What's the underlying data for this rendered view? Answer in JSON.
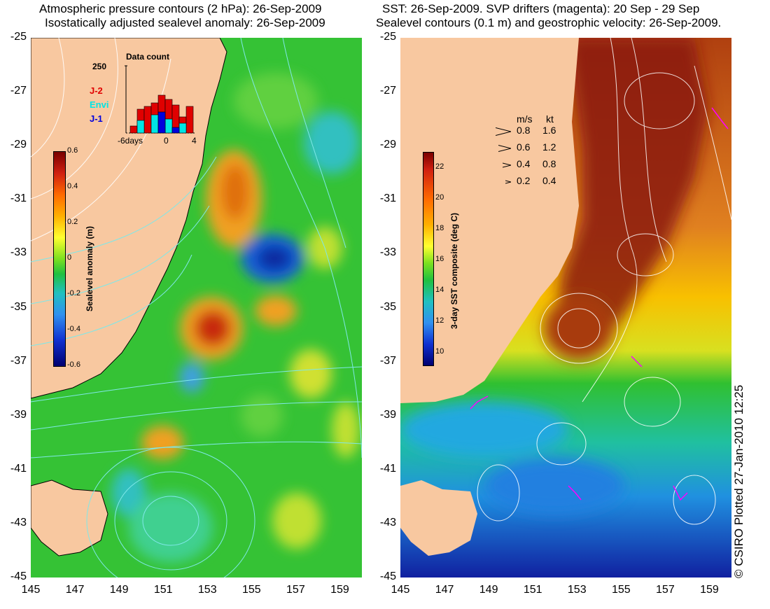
{
  "left_panel": {
    "title_line1": "Atmospheric pressure contours (2 hPa): 26-Sep-2009",
    "title_line2": "Isostatically adjusted sealevel anomaly: 26-Sep-2009",
    "colorbar": {
      "title": "Sealevel anomaly (m)",
      "ticks": [
        "0.6",
        "0.4",
        "0.2",
        "0",
        "-0.2",
        "-0.4",
        "-0.6"
      ]
    },
    "histogram": {
      "title": "Data count",
      "ymax_label": "250",
      "x_labels": [
        "-6days",
        "0",
        "4"
      ],
      "satellites": [
        {
          "name": "J-2",
          "color": "#e00000"
        },
        {
          "name": "Envi",
          "color": "#00e5e5"
        },
        {
          "name": "J-1",
          "color": "#0000dd"
        }
      ]
    }
  },
  "right_panel": {
    "title_line1": "SST: 26-Sep-2009. SVP drifters (magenta): 20 Sep - 29 Sep",
    "title_line2": "Sealevel contours (0.1 m) and geostrophic velocity: 26-Sep-2009.",
    "colorbar": {
      "title": "3-day SST composite (deg C)",
      "ticks": [
        "22",
        "20",
        "18",
        "16",
        "14",
        "12",
        "10"
      ]
    },
    "speed_legend": {
      "header_ms": "m/s",
      "header_kt": "kt",
      "rows": [
        {
          "ms": "0.8",
          "kt": "1.6"
        },
        {
          "ms": "0.6",
          "kt": "1.2"
        },
        {
          "ms": "0.4",
          "kt": "0.8"
        },
        {
          "ms": "0.2",
          "kt": "0.4"
        }
      ]
    }
  },
  "axes": {
    "y_ticks": [
      "-25",
      "-27",
      "-29",
      "-31",
      "-33",
      "-35",
      "-37",
      "-39",
      "-41",
      "-43",
      "-45"
    ],
    "x_ticks": [
      "145",
      "147",
      "149",
      "151",
      "153",
      "155",
      "157",
      "159"
    ]
  },
  "credit": "© CSIRO Plotted 27-Jan-2010 12:25",
  "colors": {
    "land": "#f8c8a0",
    "ocean_green": "#33c033",
    "coast": "#000000",
    "drifter": "#ff00ff"
  }
}
